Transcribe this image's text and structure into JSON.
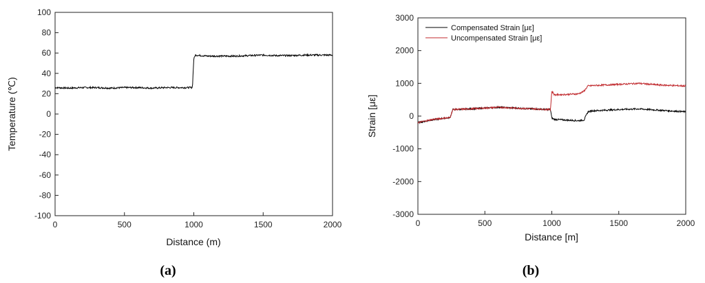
{
  "chart_data": [
    {
      "type": "line",
      "panel_label": "(a)",
      "xlabel": "Distance (m)",
      "ylabel": "Temperature (℃)",
      "xlim": [
        0,
        2000
      ],
      "ylim": [
        -100,
        100
      ],
      "xticks": [
        "0",
        "500",
        "1000",
        "1500",
        "2000"
      ],
      "yticks": [
        "100",
        "80",
        "60",
        "40",
        "20",
        "0",
        "-20",
        "-40",
        "-60",
        "-80",
        "-100"
      ],
      "grid": false,
      "series": [
        {
          "color": "#000000",
          "x": [
            0,
            100,
            200,
            300,
            400,
            500,
            600,
            700,
            800,
            900,
            980,
            990,
            1000,
            1010,
            1100,
            1200,
            1300,
            1400,
            1500,
            1600,
            1700,
            1800,
            1900,
            2000
          ],
          "y": [
            26,
            25.5,
            26,
            26,
            25.5,
            26,
            26,
            25.5,
            26,
            26,
            26,
            26,
            54,
            58,
            57,
            57,
            57,
            57.5,
            58,
            57.5,
            57.5,
            58,
            58,
            58
          ]
        }
      ]
    },
    {
      "type": "line",
      "panel_label": "(b)",
      "xlabel": "Distance [m]",
      "ylabel": "Strain [με]",
      "xlim": [
        0,
        2000
      ],
      "ylim": [
        -3000,
        3000
      ],
      "xticks": [
        "0",
        "500",
        "1000",
        "1500",
        "2000"
      ],
      "yticks": [
        "3000",
        "2000",
        "1000",
        "0",
        "-1000",
        "-2000",
        "-3000"
      ],
      "grid": false,
      "legend_position": "top-left",
      "series": [
        {
          "name": "Compensated Strain [με]",
          "color": "#000000",
          "x": [
            0,
            100,
            200,
            240,
            260,
            400,
            600,
            800,
            990,
            1000,
            1020,
            1100,
            1200,
            1240,
            1270,
            1300,
            1500,
            1650,
            1800,
            2000
          ],
          "y": [
            -200,
            -120,
            -60,
            -50,
            200,
            220,
            270,
            230,
            200,
            -60,
            -100,
            -120,
            -140,
            -120,
            130,
            160,
            200,
            220,
            180,
            130
          ]
        },
        {
          "name": "Uncompensated Strain [με]",
          "color": "#c0282c",
          "x": [
            0,
            100,
            200,
            240,
            260,
            400,
            600,
            800,
            990,
            1000,
            1020,
            1100,
            1200,
            1240,
            1270,
            1300,
            1500,
            1650,
            1800,
            2000
          ],
          "y": [
            -200,
            -110,
            -60,
            -50,
            200,
            220,
            270,
            230,
            200,
            760,
            650,
            660,
            680,
            760,
            920,
            930,
            970,
            1000,
            950,
            920
          ]
        }
      ]
    }
  ]
}
